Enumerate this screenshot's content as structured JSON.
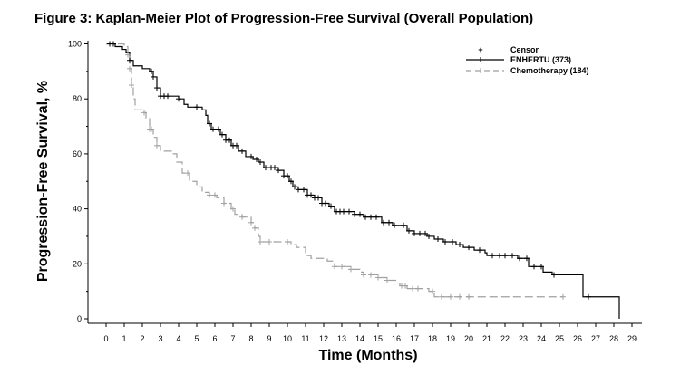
{
  "chart_data": {
    "type": "line",
    "subtype": "kaplan-meier-step",
    "title": "Figure 3: Kaplan-Meier Plot of Progression-Free Survival (Overall Population)",
    "xlabel": "Time (Months)",
    "ylabel": "Progression-Free Survival, %",
    "xlim": [
      0,
      29
    ],
    "ylim": [
      0,
      100
    ],
    "xticks": [
      0,
      1,
      2,
      3,
      4,
      5,
      6,
      7,
      8,
      9,
      10,
      11,
      12,
      13,
      14,
      15,
      16,
      17,
      18,
      19,
      20,
      21,
      22,
      23,
      24,
      25,
      26,
      27,
      28,
      29
    ],
    "yticks": [
      0,
      20,
      40,
      60,
      80,
      100
    ],
    "grid": false,
    "legend_position": "top-right",
    "legend": {
      "censor_label": "Censor",
      "censor_marker": "+"
    },
    "series": [
      {
        "name": "ENHERTU (373)",
        "color": "#000000",
        "line_style": "solid",
        "points": [
          [
            0,
            100
          ],
          [
            0.5,
            99
          ],
          [
            0.9,
            98
          ],
          [
            1.1,
            97
          ],
          [
            1.3,
            94
          ],
          [
            1.5,
            92
          ],
          [
            2.0,
            91
          ],
          [
            2.4,
            90
          ],
          [
            2.6,
            88
          ],
          [
            2.8,
            84
          ],
          [
            3.0,
            81
          ],
          [
            4.0,
            80
          ],
          [
            4.3,
            78
          ],
          [
            4.5,
            77
          ],
          [
            5.3,
            76
          ],
          [
            5.5,
            74
          ],
          [
            5.6,
            71
          ],
          [
            5.8,
            69
          ],
          [
            6.3,
            67
          ],
          [
            6.6,
            65
          ],
          [
            6.9,
            63
          ],
          [
            7.3,
            61
          ],
          [
            7.7,
            59
          ],
          [
            8.1,
            58
          ],
          [
            8.4,
            57
          ],
          [
            8.7,
            55
          ],
          [
            9.5,
            54
          ],
          [
            9.8,
            52
          ],
          [
            10.1,
            50
          ],
          [
            10.3,
            48
          ],
          [
            10.6,
            47
          ],
          [
            11.1,
            45
          ],
          [
            11.5,
            44
          ],
          [
            11.9,
            42
          ],
          [
            12.3,
            41
          ],
          [
            12.6,
            39
          ],
          [
            13.0,
            39
          ],
          [
            13.7,
            38
          ],
          [
            14.2,
            37
          ],
          [
            15.2,
            35
          ],
          [
            15.8,
            34
          ],
          [
            16.6,
            32
          ],
          [
            17.0,
            31
          ],
          [
            17.7,
            30
          ],
          [
            18.1,
            29
          ],
          [
            18.6,
            28
          ],
          [
            19.3,
            27
          ],
          [
            19.7,
            26
          ],
          [
            20.3,
            25
          ],
          [
            20.9,
            24
          ],
          [
            21.0,
            23
          ],
          [
            22.7,
            22
          ],
          [
            23.3,
            19
          ],
          [
            24.1,
            17
          ],
          [
            24.6,
            16
          ],
          [
            26.3,
            8
          ],
          [
            28.3,
            0
          ]
        ],
        "censor_x": [
          0.2,
          0.4,
          1.3,
          2.5,
          2.6,
          2.8,
          3.0,
          3.2,
          3.4,
          4.0,
          5.0,
          5.7,
          5.9,
          6.2,
          6.4,
          6.6,
          6.8,
          7.0,
          7.2,
          7.5,
          8.0,
          8.3,
          8.5,
          8.8,
          9.1,
          9.3,
          9.5,
          9.8,
          10.0,
          10.2,
          10.4,
          10.6,
          10.9,
          11.1,
          11.3,
          11.5,
          11.7,
          11.9,
          12.1,
          12.4,
          12.7,
          12.9,
          13.1,
          13.4,
          13.7,
          14.0,
          14.3,
          14.6,
          14.9,
          15.3,
          15.6,
          15.9,
          16.4,
          16.7,
          17.0,
          17.3,
          17.6,
          17.8,
          18.3,
          18.7,
          19.1,
          19.5,
          20.0,
          20.6,
          21.3,
          21.7,
          22.0,
          22.4,
          22.8,
          23.2,
          23.6,
          24.0,
          24.7,
          26.6
        ]
      },
      {
        "name": "Chemotherapy (184)",
        "color": "#a0a0a0",
        "line_style": "dashed",
        "points": [
          [
            0,
            100
          ],
          [
            1.0,
            99
          ],
          [
            1.2,
            96
          ],
          [
            1.3,
            91
          ],
          [
            1.4,
            85
          ],
          [
            1.5,
            80
          ],
          [
            1.6,
            76
          ],
          [
            2.0,
            75
          ],
          [
            2.2,
            73
          ],
          [
            2.4,
            69
          ],
          [
            2.6,
            66
          ],
          [
            2.8,
            63
          ],
          [
            3.0,
            61
          ],
          [
            3.6,
            60
          ],
          [
            3.9,
            57
          ],
          [
            4.2,
            53
          ],
          [
            4.6,
            50
          ],
          [
            5.0,
            48
          ],
          [
            5.3,
            46
          ],
          [
            5.7,
            45
          ],
          [
            6.1,
            44
          ],
          [
            6.5,
            42
          ],
          [
            6.9,
            40
          ],
          [
            7.1,
            38
          ],
          [
            7.5,
            37
          ],
          [
            8.0,
            35
          ],
          [
            8.2,
            33
          ],
          [
            8.4,
            30
          ],
          [
            8.5,
            28
          ],
          [
            10.2,
            27
          ],
          [
            10.5,
            26
          ],
          [
            11.0,
            23
          ],
          [
            11.3,
            22
          ],
          [
            12.2,
            21
          ],
          [
            12.6,
            19
          ],
          [
            13.5,
            18
          ],
          [
            14.0,
            17
          ],
          [
            14.2,
            16
          ],
          [
            15.0,
            15
          ],
          [
            15.5,
            14
          ],
          [
            16.0,
            13
          ],
          [
            16.2,
            12
          ],
          [
            16.6,
            11
          ],
          [
            17.5,
            11
          ],
          [
            17.8,
            10
          ],
          [
            18.1,
            8
          ],
          [
            25.2,
            8
          ]
        ],
        "censor_x": [
          1.2,
          1.3,
          1.4,
          2.1,
          2.4,
          2.5,
          2.8,
          4.5,
          5.7,
          6.0,
          6.5,
          7.0,
          7.5,
          8.0,
          8.2,
          8.5,
          9.0,
          10.0,
          12.6,
          13.0,
          13.5,
          14.2,
          14.6,
          15.0,
          15.5,
          16.3,
          16.5,
          16.9,
          17.2,
          18.0,
          18.5,
          19.0,
          19.5,
          20.0,
          25.2
        ]
      }
    ]
  }
}
